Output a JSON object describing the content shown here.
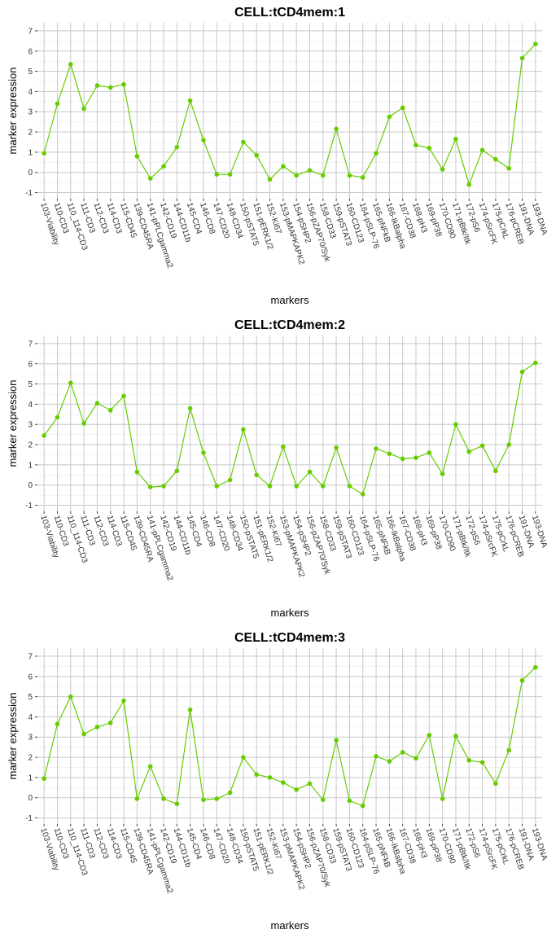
{
  "chart_data": [
    {
      "type": "line",
      "title": "CELL:tCD4mem:1",
      "xlabel": "markers",
      "ylabel": "marker expression",
      "ylim": [
        -1.3,
        7.4
      ],
      "yticks": [
        -1,
        0,
        1,
        2,
        3,
        4,
        5,
        6,
        7
      ],
      "grid": true,
      "legend": "none",
      "line_color": "#66cc00",
      "point_color": "#66cc00",
      "categories": [
        "103-Viability",
        "110-CD3",
        "110_114-CD3",
        "111-CD3",
        "112-CD3",
        "114-CD3",
        "115-CD45",
        "139-CD45RA",
        "141-pPLCgamma2",
        "142-CD19",
        "144-CD11b",
        "145-CD4",
        "146-CD8",
        "147-CD20",
        "148-CD34",
        "150-pSTAT5",
        "151-pERK1/2",
        "152-Ki67",
        "153-pMAPKAPK2",
        "154-pSHP2",
        "156-pZAP70/Syk",
        "158-CD33",
        "159-pSTAT3",
        "160-CD123",
        "164-pSLP-76",
        "165-pNFkB",
        "166-IkBalpha",
        "167-CD38",
        "168-pH3",
        "169-pP38",
        "170-CD90",
        "171-pBtk/Itk",
        "172-pS6",
        "174-pSrcFK",
        "175-pCrkL",
        "176-pCREB",
        "191-DNA",
        "193-DNA"
      ],
      "values": [
        0.95,
        3.4,
        5.35,
        3.15,
        4.3,
        4.2,
        4.35,
        0.8,
        -0.3,
        0.3,
        1.25,
        3.55,
        1.6,
        -0.1,
        -0.1,
        1.5,
        0.85,
        -0.35,
        0.3,
        -0.15,
        0.1,
        -0.15,
        2.15,
        -0.15,
        -0.25,
        0.95,
        2.75,
        3.2,
        1.35,
        1.2,
        0.15,
        1.65,
        -0.6,
        1.1,
        0.65,
        0.2,
        5.65,
        6.35
      ]
    },
    {
      "type": "line",
      "title": "CELL:tCD4mem:2",
      "xlabel": "markers",
      "ylabel": "marker expression",
      "ylim": [
        -1.3,
        7.4
      ],
      "yticks": [
        -1,
        0,
        1,
        2,
        3,
        4,
        5,
        6,
        7
      ],
      "grid": true,
      "legend": "none",
      "line_color": "#66cc00",
      "point_color": "#66cc00",
      "categories": [
        "103-Viability",
        "110-CD3",
        "110_114-CD3",
        "111-CD3",
        "112-CD3",
        "114-CD3",
        "115-CD45",
        "139-CD45RA",
        "141-pPLCgamma2",
        "142-CD19",
        "144-CD11b",
        "145-CD4",
        "146-CD8",
        "147-CD20",
        "148-CD34",
        "150-pSTAT5",
        "151-pERK1/2",
        "152-Ki67",
        "153-pMAPKAPK2",
        "154-pSHP2",
        "156-pZAP70/Syk",
        "158-CD33",
        "159-pSTAT3",
        "160-CD123",
        "164-pSLP-76",
        "165-pNFkB",
        "166-IkBalpha",
        "167-CD38",
        "168-pH3",
        "169-pP38",
        "170-CD90",
        "171-pBtk/Itk",
        "172-pS6",
        "174-pSrcFK",
        "175-pCrkL",
        "176-pCREB",
        "191-DNA",
        "193-DNA"
      ],
      "values": [
        2.45,
        3.35,
        5.05,
        3.05,
        4.05,
        3.7,
        4.4,
        0.65,
        -0.1,
        -0.05,
        0.7,
        3.8,
        1.6,
        -0.05,
        0.25,
        2.75,
        0.5,
        -0.05,
        1.9,
        -0.05,
        0.65,
        -0.05,
        1.85,
        -0.05,
        -0.45,
        1.8,
        1.55,
        1.3,
        1.35,
        1.6,
        0.55,
        3.0,
        1.65,
        1.95,
        0.7,
        2.0,
        5.6,
        6.05
      ]
    },
    {
      "type": "line",
      "title": "CELL:tCD4mem:3",
      "xlabel": "markers",
      "ylabel": "marker expression",
      "ylim": [
        -1.3,
        7.4
      ],
      "yticks": [
        -1,
        0,
        1,
        2,
        3,
        4,
        5,
        6,
        7
      ],
      "grid": true,
      "legend": "none",
      "line_color": "#66cc00",
      "point_color": "#66cc00",
      "categories": [
        "103-Viability",
        "110-CD3",
        "110_114-CD3",
        "111-CD3",
        "112-CD3",
        "114-CD3",
        "115-CD45",
        "139-CD45RA",
        "141-pPLCgamma2",
        "142-CD19",
        "144-CD11b",
        "145-CD4",
        "146-CD8",
        "147-CD20",
        "148-CD34",
        "150-pSTAT5",
        "151-pERK1/2",
        "152-Ki67",
        "153-pMAPKAPK2",
        "154-pSHP2",
        "156-pZAP70/Syk",
        "158-CD33",
        "159-pSTAT3",
        "160-CD123",
        "164-pSLP-76",
        "165-pNFkB",
        "166-IkBalpha",
        "167-CD38",
        "168-pH3",
        "169-pP38",
        "170-CD90",
        "171-pBtk/Itk",
        "172-pS6",
        "174-pSrcFK",
        "175-pCrkL",
        "176-pCREB",
        "191-DNA",
        "193-DNA"
      ],
      "values": [
        0.95,
        3.65,
        5.0,
        3.15,
        3.5,
        3.7,
        4.8,
        -0.05,
        1.55,
        -0.05,
        -0.3,
        4.35,
        -0.1,
        -0.05,
        0.25,
        2.0,
        1.15,
        1.0,
        0.75,
        0.4,
        0.7,
        -0.1,
        2.85,
        -0.15,
        -0.4,
        2.05,
        1.8,
        2.25,
        1.95,
        3.1,
        -0.05,
        3.05,
        1.85,
        1.75,
        0.7,
        2.35,
        5.8,
        6.45
      ]
    }
  ]
}
